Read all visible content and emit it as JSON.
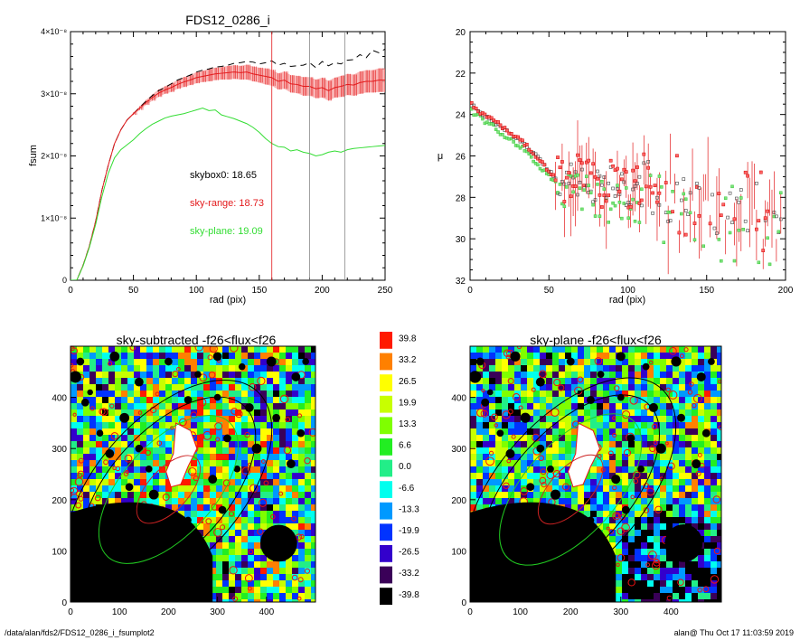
{
  "chart_data": [
    {
      "type": "line",
      "title": "FDS12_0286_i",
      "xlabel": "rad (pix)",
      "ylabel": "fsum",
      "xlim": [
        0,
        250
      ],
      "ylim": [
        0,
        4e-08
      ],
      "xticks": [
        "0",
        "50",
        "100",
        "150",
        "200",
        "250"
      ],
      "yticks": [
        {
          "value": 0,
          "label": "0"
        },
        {
          "value": 1e-08,
          "label": "1×10⁻⁸"
        },
        {
          "value": 2e-08,
          "label": "2×10⁻⁸"
        },
        {
          "value": 3e-08,
          "label": "3×10⁻⁸"
        },
        {
          "value": 4e-08,
          "label": "4×10⁻⁸"
        }
      ],
      "annotations": [
        {
          "text": "skybox0: 18.65",
          "color": "#000000"
        },
        {
          "text": "sky-range: 18.73",
          "color": "#e31a1c"
        },
        {
          "text": "sky-plane: 19.09",
          "color": "#33dd33"
        }
      ],
      "vlines": [
        {
          "x": 160,
          "color": "#e31a1c"
        },
        {
          "x": 190,
          "color": "#888888"
        },
        {
          "x": 218,
          "color": "#888888"
        }
      ],
      "series": [
        {
          "style": "dashed",
          "color": "#000000",
          "x": [
            0,
            5,
            10,
            15,
            20,
            25,
            30,
            35,
            40,
            45,
            50,
            55,
            60,
            65,
            70,
            75,
            80,
            85,
            90,
            95,
            100,
            105,
            110,
            115,
            120,
            125,
            130,
            135,
            140,
            145,
            150,
            155,
            160,
            165,
            170,
            175,
            180,
            185,
            190,
            195,
            200,
            205,
            210,
            215,
            220,
            225,
            230,
            235,
            240,
            245,
            250
          ],
          "values": [
            0,
            1e-11,
            2.4e-09,
            5.5e-09,
            9.5e-09,
            1.45e-08,
            1.85e-08,
            2.2e-08,
            2.42e-08,
            2.58e-08,
            2.68e-08,
            2.78e-08,
            2.88e-08,
            2.97e-08,
            3.05e-08,
            3.1e-08,
            3.16e-08,
            3.22e-08,
            3.26e-08,
            3.3e-08,
            3.35e-08,
            3.38e-08,
            3.4e-08,
            3.43e-08,
            3.44e-08,
            3.46e-08,
            3.49e-08,
            3.5e-08,
            3.52e-08,
            3.51e-08,
            3.48e-08,
            3.5e-08,
            3.53e-08,
            3.46e-08,
            3.49e-08,
            3.44e-08,
            3.45e-08,
            3.46e-08,
            3.5e-08,
            3.42e-08,
            3.52e-08,
            3.45e-08,
            3.5e-08,
            3.48e-08,
            3.54e-08,
            3.55e-08,
            3.63e-08,
            3.58e-08,
            3.7e-08,
            3.66e-08,
            3.72e-08
          ]
        },
        {
          "style": "solid",
          "color": "#e31a1c",
          "errorbars": true,
          "x": [
            0,
            5,
            10,
            15,
            20,
            25,
            30,
            35,
            40,
            45,
            50,
            55,
            60,
            65,
            70,
            75,
            80,
            85,
            90,
            95,
            100,
            105,
            110,
            115,
            120,
            125,
            130,
            135,
            140,
            145,
            150,
            155,
            160,
            165,
            170,
            175,
            180,
            185,
            190,
            195,
            200,
            205,
            210,
            215,
            220,
            225,
            230,
            235,
            240,
            245,
            250
          ],
          "values": [
            0,
            1e-11,
            2.4e-09,
            5.5e-09,
            9.5e-09,
            1.45e-08,
            1.85e-08,
            2.2e-08,
            2.42e-08,
            2.58e-08,
            2.68e-08,
            2.77e-08,
            2.86e-08,
            2.94e-08,
            3.01e-08,
            3.06e-08,
            3.1e-08,
            3.15e-08,
            3.19e-08,
            3.22e-08,
            3.26e-08,
            3.28e-08,
            3.3e-08,
            3.32e-08,
            3.33e-08,
            3.34e-08,
            3.35e-08,
            3.34e-08,
            3.35e-08,
            3.32e-08,
            3.3e-08,
            3.28e-08,
            3.26e-08,
            3.2e-08,
            3.22e-08,
            3.16e-08,
            3.15e-08,
            3.12e-08,
            3.12e-08,
            3.08e-08,
            3.1e-08,
            3.05e-08,
            3.1e-08,
            3.12e-08,
            3.15e-08,
            3.14e-08,
            3.18e-08,
            3.2e-08,
            3.2e-08,
            3.22e-08,
            3.22e-08
          ],
          "errors": [
            0,
            0,
            0,
            0,
            0,
            0,
            0,
            0,
            0,
            0,
            2e-10,
            3e-10,
            4e-10,
            5e-10,
            6e-10,
            6e-10,
            7e-10,
            7e-10,
            8e-10,
            8e-10,
            9e-10,
            9e-10,
            1e-09,
            1e-09,
            1e-09,
            1.1e-09,
            1.1e-09,
            1.1e-09,
            1.2e-09,
            1.2e-09,
            1.2e-09,
            1.3e-09,
            1.3e-09,
            1.3e-09,
            1.4e-09,
            1.4e-09,
            1.4e-09,
            1.5e-09,
            1.5e-09,
            1.5e-09,
            1.6e-09,
            1.6e-09,
            1.6e-09,
            1.7e-09,
            1.7e-09,
            1.7e-09,
            1.8e-09,
            1.8e-09,
            1.8e-09,
            1.9e-09,
            1.9e-09
          ]
        },
        {
          "style": "solid",
          "color": "#33dd33",
          "x": [
            0,
            5,
            10,
            15,
            20,
            25,
            30,
            35,
            40,
            45,
            50,
            55,
            60,
            65,
            70,
            75,
            80,
            85,
            90,
            95,
            100,
            105,
            110,
            115,
            120,
            125,
            130,
            135,
            140,
            145,
            150,
            155,
            160,
            165,
            170,
            175,
            180,
            185,
            190,
            195,
            200,
            205,
            210,
            215,
            220,
            225,
            230,
            235,
            240,
            245,
            250
          ],
          "values": [
            0,
            1e-11,
            2.3e-09,
            5.3e-09,
            9e-09,
            1.35e-08,
            1.72e-08,
            1.97e-08,
            2.1e-08,
            2.18e-08,
            2.26e-08,
            2.36e-08,
            2.44e-08,
            2.51e-08,
            2.56e-08,
            2.61e-08,
            2.64e-08,
            2.66e-08,
            2.68e-08,
            2.71e-08,
            2.74e-08,
            2.77e-08,
            2.73e-08,
            2.74e-08,
            2.66e-08,
            2.63e-08,
            2.6e-08,
            2.56e-08,
            2.52e-08,
            2.46e-08,
            2.38e-08,
            2.28e-08,
            2.2e-08,
            2.15e-08,
            2.14e-08,
            2.08e-08,
            2.1e-08,
            2.06e-08,
            2.04e-08,
            2e-08,
            2.02e-08,
            2.06e-08,
            2.08e-08,
            2.06e-08,
            2.1e-08,
            2.12e-08,
            2.13e-08,
            2.14e-08,
            2.15e-08,
            2.16e-08,
            2.17e-08
          ]
        }
      ]
    },
    {
      "type": "scatter",
      "xlabel": "rad (pix)",
      "ylabel": "μ",
      "xlim": [
        0,
        200
      ],
      "ylim": [
        32,
        20
      ],
      "xticks": [
        "0",
        "50",
        "100",
        "150",
        "200"
      ],
      "yticks": [
        "20",
        "22",
        "24",
        "26",
        "28",
        "30",
        "32"
      ]
    },
    {
      "type": "heatmap",
      "title": "sky-subtracted -f26<flux<f26",
      "xlim": [
        0,
        500
      ],
      "ylim": [
        0,
        500
      ],
      "xticks": [
        "0",
        "100",
        "200",
        "300",
        "400"
      ],
      "yticks": [
        "0",
        "100",
        "200",
        "300",
        "400"
      ]
    },
    {
      "type": "heatmap",
      "title": "sky-plane -f26<flux<f26",
      "xlim": [
        0,
        500
      ],
      "ylim": [
        0,
        500
      ],
      "xticks": [
        "0",
        "100",
        "200",
        "300",
        "400"
      ],
      "yticks": [
        "0",
        "100",
        "200",
        "300",
        "400"
      ]
    },
    {
      "type": "table",
      "colorbar": [
        {
          "label": "39.8",
          "color": "#ff1a00"
        },
        {
          "label": "33.2",
          "color": "#ff8000"
        },
        {
          "label": "26.5",
          "color": "#ffff00"
        },
        {
          "label": "19.9",
          "color": "#c8ff00"
        },
        {
          "label": "13.3",
          "color": "#7fff00"
        },
        {
          "label": "6.6",
          "color": "#22ee22"
        },
        {
          "label": "0.0",
          "color": "#22ee88"
        },
        {
          "label": "-6.6",
          "color": "#00ffee"
        },
        {
          "label": "-13.3",
          "color": "#0099ff"
        },
        {
          "label": "-19.9",
          "color": "#0033ff"
        },
        {
          "label": "-26.5",
          "color": "#3300cc"
        },
        {
          "label": "-33.2",
          "color": "#3a0058"
        },
        {
          "label": "-39.8",
          "color": "#000000"
        }
      ]
    }
  ],
  "footer": {
    "path": "/data/alan/fds2/FDS12_0286_i_fsumplot2",
    "stamp": "alan@  Thu Oct 17 11:03:59 2019"
  }
}
